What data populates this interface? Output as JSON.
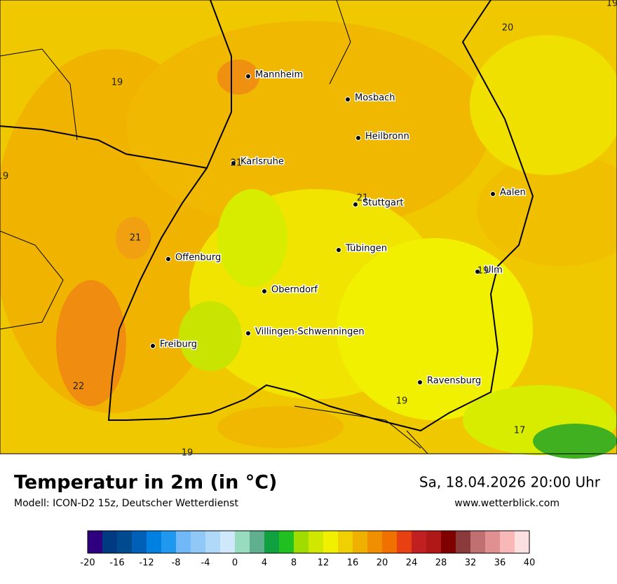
{
  "header": {
    "title": "Temperatur in 2m (in °C)",
    "subtitle": "Modell: ICON-D2 15z, Deutscher Wetterdienst",
    "datetime": "Sa, 18.04.2026 20:00 Uhr",
    "website": "www.wetterblick.com"
  },
  "cities": [
    "Mannheim",
    "Mosbach",
    "Heilbronn",
    "Karlsruhe",
    "Stuttgart",
    "Aalen",
    "Offenburg",
    "Tübingen",
    "Ulm",
    "Oberndorf",
    "Villingen-Schwenningen",
    "Freiburg",
    "Ravensburg"
  ],
  "map_values": [
    20,
    19,
    19,
    21,
    21,
    21,
    19,
    22,
    19,
    17,
    19,
    19
  ],
  "colorbar": {
    "ticks": [
      -20,
      -16,
      -12,
      -8,
      -4,
      0,
      4,
      8,
      12,
      16,
      20,
      24,
      28,
      32,
      36,
      40
    ],
    "colors": [
      "#2e0080",
      "#003a80",
      "#004a90",
      "#0060b8",
      "#0080e0",
      "#2098f0",
      "#70b8f8",
      "#90c8f8",
      "#b0d8f8",
      "#d0e8fc",
      "#98dcc0",
      "#60b090",
      "#10a040",
      "#20c020",
      "#a0dc00",
      "#d0e800",
      "#f0f000",
      "#f0d000",
      "#f0b000",
      "#f09000",
      "#f07000",
      "#e84010",
      "#c02020",
      "#b01818",
      "#800000",
      "#8a3a3a",
      "#c07070",
      "#e09090",
      "#f8b8b8",
      "#fce0e0"
    ]
  }
}
